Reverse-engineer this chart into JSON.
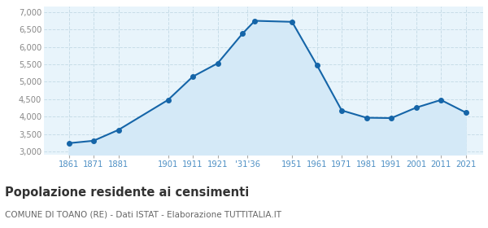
{
  "years": [
    1861,
    1871,
    1881,
    1901,
    1911,
    1921,
    1931,
    1936,
    1951,
    1961,
    1971,
    1981,
    1991,
    2001,
    2011,
    2021
  ],
  "population": [
    3240,
    3310,
    3620,
    4480,
    5150,
    5530,
    6380,
    6750,
    6720,
    5480,
    4180,
    3970,
    3960,
    4260,
    4480,
    4120
  ],
  "x_tick_positions": [
    1861,
    1871,
    1881,
    1901,
    1911,
    1921,
    1933,
    1951,
    1961,
    1971,
    1981,
    1991,
    2001,
    2011,
    2021
  ],
  "x_tick_labels": [
    "1861",
    "1871",
    "1881",
    "1901",
    "1911",
    "1921",
    "'31'36",
    "1951",
    "1961",
    "1971",
    "1981",
    "1991",
    "2001",
    "2011",
    "2021"
  ],
  "y_ticks": [
    3000,
    3500,
    4000,
    4500,
    5000,
    5500,
    6000,
    6500,
    7000
  ],
  "ylim": [
    2900,
    7150
  ],
  "xlim": [
    1851,
    2028
  ],
  "line_color": "#1565a8",
  "fill_color": "#d4e9f7",
  "marker_color": "#1565a8",
  "bg_color": "#e8f4fb",
  "grid_color": "#c8dde8",
  "title": "Popolazione residente ai censimenti",
  "subtitle": "COMUNE DI TOANO (RE) - Dati ISTAT - Elaborazione TUTTITALIA.IT",
  "title_fontsize": 10.5,
  "subtitle_fontsize": 7.5,
  "tick_label_color_x": "#4d8fc4",
  "tick_label_color_y": "#888888"
}
